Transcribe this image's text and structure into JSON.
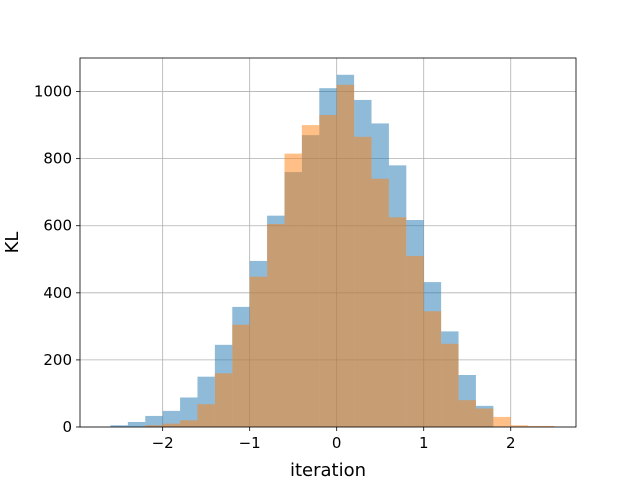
{
  "chart_data": {
    "type": "bar",
    "title": "",
    "xlabel": "iteration",
    "ylabel": "KL",
    "xlim": [
      -2.95,
      2.75
    ],
    "ylim": [
      0,
      1100
    ],
    "x_ticks": [
      -2,
      -1,
      0,
      1,
      2
    ],
    "y_ticks": [
      0,
      200,
      400,
      600,
      800,
      1000
    ],
    "x_tick_labels": [
      "−2",
      "−1",
      "0",
      "1",
      "2"
    ],
    "y_tick_labels": [
      "0",
      "200",
      "400",
      "600",
      "800",
      "1000"
    ],
    "grid": true,
    "legend": "none",
    "series": [
      {
        "color": "#1f77b4",
        "opacity": 0.5,
        "bin_edges": [
          -2.6,
          -2.4,
          -2.2,
          -2.0,
          -1.8,
          -1.6,
          -1.4,
          -1.2,
          -1.0,
          -0.8,
          -0.6,
          -0.4,
          -0.2,
          0.0,
          0.2,
          0.4,
          0.6,
          0.8,
          1.0,
          1.2,
          1.4,
          1.6,
          1.8
        ],
        "counts": [
          5,
          15,
          33,
          48,
          88,
          150,
          245,
          358,
          495,
          630,
          760,
          870,
          1010,
          1050,
          975,
          905,
          780,
          617,
          432,
          285,
          155,
          63
        ]
      },
      {
        "color": "#ff7f0e",
        "opacity": 0.5,
        "bin_edges": [
          -2.2,
          -2.0,
          -1.8,
          -1.6,
          -1.4,
          -1.2,
          -1.0,
          -0.8,
          -0.6,
          -0.4,
          -0.2,
          0.0,
          0.2,
          0.4,
          0.6,
          0.8,
          1.0,
          1.2,
          1.4,
          1.6,
          1.8,
          2.0,
          2.2,
          2.5
        ],
        "counts": [
          5,
          10,
          20,
          68,
          160,
          305,
          448,
          605,
          815,
          900,
          930,
          1020,
          865,
          740,
          625,
          510,
          345,
          248,
          80,
          55,
          30,
          5,
          3
        ]
      }
    ]
  }
}
